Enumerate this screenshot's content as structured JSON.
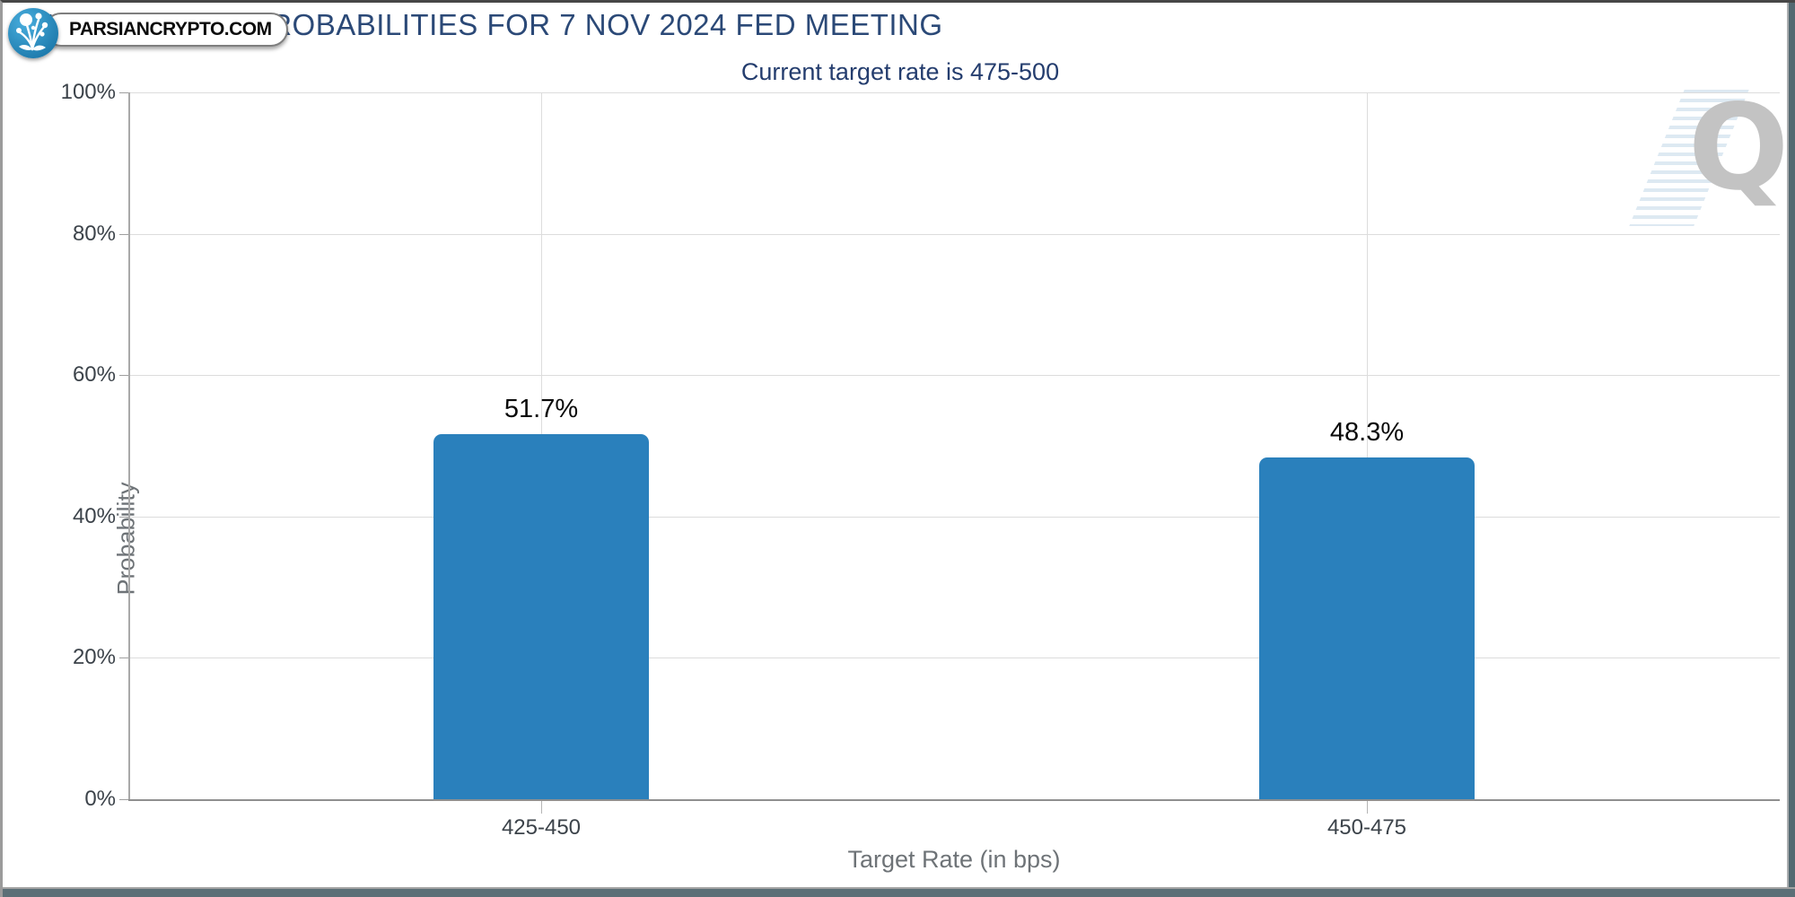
{
  "page": {
    "title": "TARGET RATE PROBABILITIES FOR 7 NOV 2024 FED MEETING",
    "subtitle": "Current target rate is 475-500",
    "badge_text": "PARSIANCRYPTO.COM",
    "watermark_letter": "Q"
  },
  "chart_data": {
    "type": "bar",
    "title": "TARGET RATE PROBABILITIES FOR 7 NOV 2024 FED MEETING",
    "subtitle": "Current target rate is 475-500",
    "categories": [
      "425-450",
      "450-475"
    ],
    "values": [
      51.7,
      48.3
    ],
    "value_labels": [
      "51.7%",
      "48.3%"
    ],
    "xlabel": "Target Rate (in bps)",
    "ylabel": "Probability",
    "ylim": [
      0,
      100
    ],
    "ytick_step": 20,
    "ytick_labels": [
      "0%",
      "20%",
      "40%",
      "60%",
      "80%",
      "100%"
    ],
    "grid": true,
    "legend": "none"
  },
  "colors": {
    "bar": "#2A80BC",
    "title_navy": "#2B4977",
    "subtitle_navy": "#243D6E",
    "bottom_strip": "#5C6F77",
    "watermark_gray": "#C3C3C3",
    "watermark_stripe_blue": "#DDE9F2"
  }
}
